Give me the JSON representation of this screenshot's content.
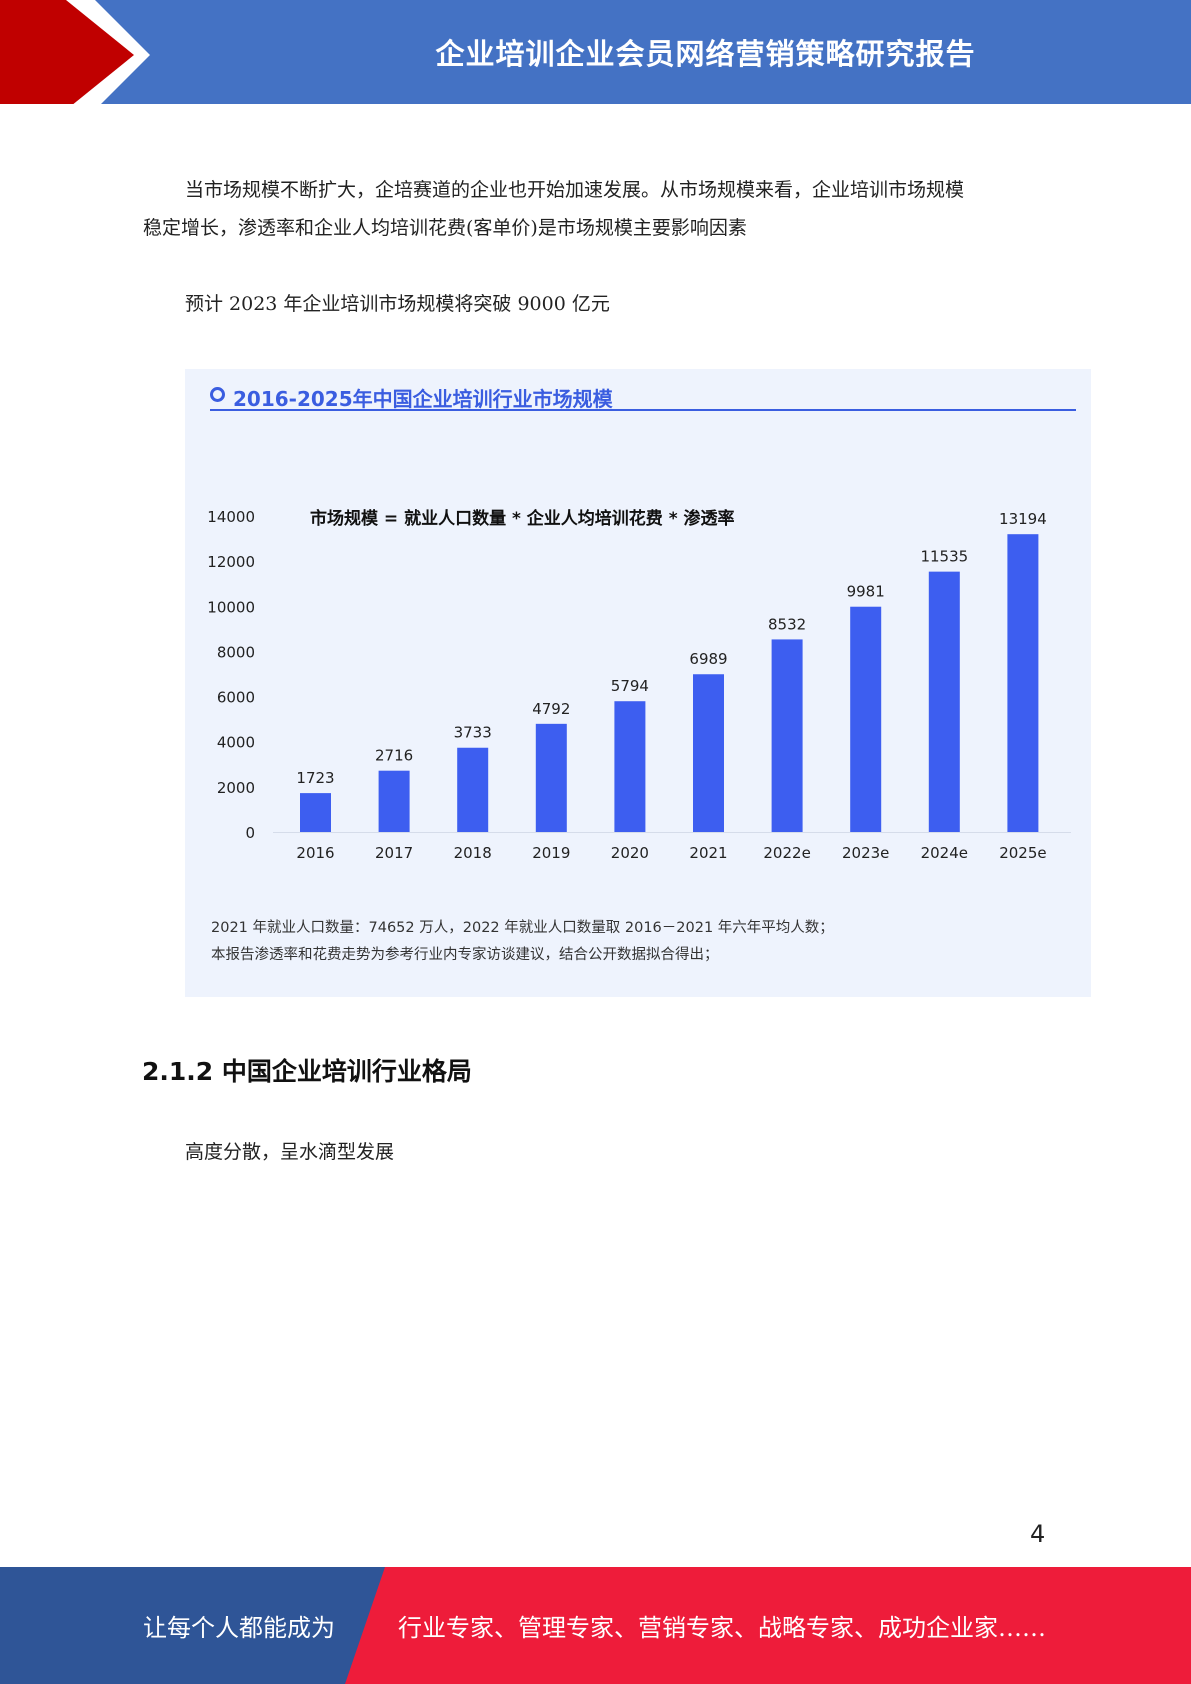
{
  "header": {
    "title": "企业培训企业会员网络营销策略研究报告"
  },
  "body": {
    "paragraph1_line1": "当市场规模不断扩大，企培赛道的企业也开始加速发展。从市场规模来看，企业培训市场规模",
    "paragraph1_line2": "稳定增长，渗透率和企业人均培训花费(客单价)是市场规模主要影响因素",
    "paragraph2": "预计 2023 年企业培训市场规模将突破 9000 亿元"
  },
  "chart_data": {
    "type": "bar",
    "title": "2016-2025年中国企业培训行业市场规模",
    "annotation": "市场规模 = 就业人口数量 * 企业人均培训花费 * 渗透率",
    "categories": [
      "2016",
      "2017",
      "2018",
      "2019",
      "2020",
      "2021",
      "2022e",
      "2023e",
      "2024e",
      "2025e"
    ],
    "values": [
      1723,
      2716,
      3733,
      4792,
      5794,
      6989,
      8532,
      9981,
      11535,
      13194
    ],
    "yticks": [
      "0",
      "2000",
      "4000",
      "6000",
      "8000",
      "10000",
      "12000",
      "14000"
    ],
    "ylim": [
      0,
      14000
    ],
    "xlabel": "",
    "ylabel": "",
    "grid": false,
    "bar_color": "#3d5ef0",
    "notes": [
      "2021 年就业人口数量：74652 万人，2022 年就业人口数量取 2016－2021 年六年平均人数；",
      "本报告渗透率和花费走势为参考行业内专家访谈建议，结合公开数据拟合得出；"
    ]
  },
  "section": {
    "heading": "2.1.2 中国企业培训行业格局",
    "text": "高度分散，呈水滴型发展"
  },
  "page_number": "4",
  "footer": {
    "left_text": "让每个人都能成为",
    "right_text": "行业专家、管理专家、营销专家、战略专家、成功企业家……"
  },
  "colors": {
    "header_blue": "#4472c4",
    "header_red": "#c00000",
    "footer_blue": "#2f5597",
    "footer_red": "#ee1c3a",
    "chart_bg": "#eef3fd"
  }
}
